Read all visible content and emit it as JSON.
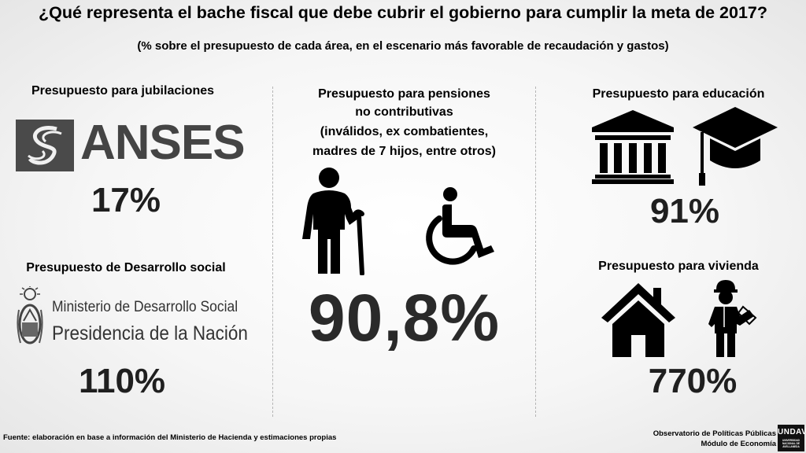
{
  "header": {
    "title": "¿Qué representa el bache fiscal que debe cubrir el gobierno para cumplir la meta de 2017?",
    "subtitle": "(% sobre el presupuesto de cada área, en el escenario más favorable de recaudación y gastos)"
  },
  "jubilaciones": {
    "label": "Presupuesto para jubilaciones",
    "logo_text": "ANSES",
    "value": "17%"
  },
  "desarrollo_social": {
    "label": "Presupuesto de Desarrollo social",
    "logo_line1": "Ministerio de Desarrollo Social",
    "logo_line2": "Presidencia de la Nación",
    "value": "110%"
  },
  "pensiones": {
    "label_line1": "Presupuesto para pensiones",
    "label_line2": "no contributivas",
    "label_line3": "(inválidos, ex combatientes,",
    "label_line4": "madres de 7 hijos, entre otros)",
    "value": "90,8%",
    "icons": [
      "elderly-person-icon",
      "wheelchair-icon"
    ]
  },
  "educacion": {
    "label": "Presupuesto para educación",
    "value": "91%",
    "icons": [
      "institution-building-icon",
      "graduation-cap-icon"
    ]
  },
  "vivienda": {
    "label": "Presupuesto para vivienda",
    "value": "770%",
    "icons": [
      "house-icon",
      "construction-worker-icon"
    ]
  },
  "footer": {
    "source": "Fuente: elaboración en base a información del Ministerio de Hacienda y estimaciones propias",
    "org_line1": "Observatorio de Políticas Públicas",
    "org_line2": "Módulo de Economía",
    "logo_text": "UNDAV",
    "logo_sub": "UNIVERSIDAD NACIONAL DE AVELLANEDA"
  },
  "colors": {
    "background": "#f4f4f4",
    "text": "#000000",
    "percent": "#1f1f1f",
    "logo_gray": "#444444"
  }
}
